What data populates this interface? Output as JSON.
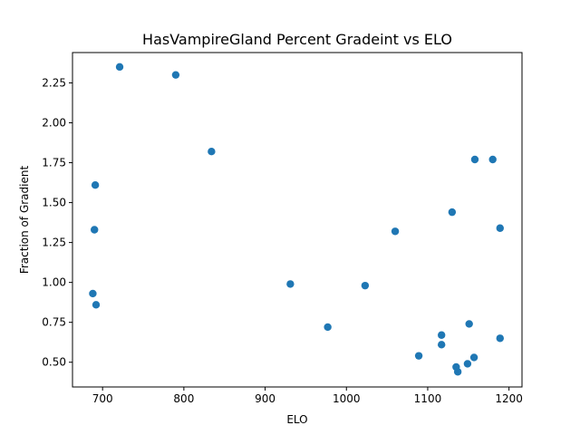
{
  "chart_data": {
    "type": "scatter",
    "title": "HasVampireGland Percent Gradeint vs ELO",
    "xlabel": "ELO",
    "ylabel": "Fraction of Gradient",
    "xlim": [
      663,
      1216
    ],
    "ylim": [
      0.345,
      2.44
    ],
    "xticks": [
      700,
      800,
      900,
      1000,
      1100,
      1200
    ],
    "yticks": [
      0.5,
      0.75,
      1.0,
      1.25,
      1.5,
      1.75,
      2.0,
      2.25
    ],
    "xtick_labels": [
      "700",
      "800",
      "900",
      "1000",
      "1100",
      "1200"
    ],
    "ytick_labels": [
      "0.50",
      "0.75",
      "1.00",
      "1.25",
      "1.50",
      "1.75",
      "2.00",
      "2.25"
    ],
    "grid": false,
    "color": "#1f77b4",
    "points": [
      {
        "x": 721,
        "y": 2.35
      },
      {
        "x": 790,
        "y": 2.3
      },
      {
        "x": 834,
        "y": 1.82
      },
      {
        "x": 691,
        "y": 1.61
      },
      {
        "x": 690,
        "y": 1.33
      },
      {
        "x": 688,
        "y": 0.93
      },
      {
        "x": 692,
        "y": 0.86
      },
      {
        "x": 931,
        "y": 0.99
      },
      {
        "x": 977,
        "y": 0.72
      },
      {
        "x": 1023,
        "y": 0.98
      },
      {
        "x": 1060,
        "y": 1.32
      },
      {
        "x": 1089,
        "y": 0.54
      },
      {
        "x": 1117,
        "y": 0.67
      },
      {
        "x": 1117,
        "y": 0.61
      },
      {
        "x": 1130,
        "y": 1.44
      },
      {
        "x": 1135,
        "y": 0.47
      },
      {
        "x": 1137,
        "y": 0.44
      },
      {
        "x": 1149,
        "y": 0.49
      },
      {
        "x": 1151,
        "y": 0.74
      },
      {
        "x": 1157,
        "y": 0.53
      },
      {
        "x": 1158,
        "y": 1.77
      },
      {
        "x": 1180,
        "y": 1.77
      },
      {
        "x": 1189,
        "y": 1.34
      },
      {
        "x": 1189,
        "y": 0.65
      }
    ]
  }
}
